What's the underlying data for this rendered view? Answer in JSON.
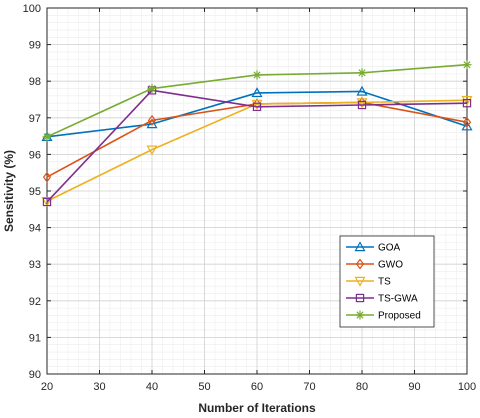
{
  "chart_data": {
    "type": "line",
    "xlabel": "Number of Iterations",
    "ylabel": "Sensitivity (%)",
    "xlim": [
      20,
      100
    ],
    "ylim": [
      90,
      100
    ],
    "xticks": [
      20,
      30,
      40,
      50,
      60,
      70,
      80,
      90,
      100
    ],
    "yticks": [
      90,
      91,
      92,
      93,
      94,
      95,
      96,
      97,
      98,
      99,
      100
    ],
    "grid": true,
    "minor_grid": true,
    "legend_position": "bottom-right",
    "x": [
      20,
      40,
      60,
      80,
      100
    ],
    "series": [
      {
        "name": "GOA",
        "color": "#0072BD",
        "marker": "triangle-up",
        "values": [
          96.48,
          96.83,
          97.68,
          97.72,
          96.77
        ]
      },
      {
        "name": "GWO",
        "color": "#D95319",
        "marker": "diamond",
        "values": [
          95.38,
          96.93,
          97.38,
          97.42,
          96.88
        ]
      },
      {
        "name": "TS",
        "color": "#EDB120",
        "marker": "triangle-down",
        "values": [
          94.72,
          96.13,
          97.38,
          97.42,
          97.48
        ]
      },
      {
        "name": "TS-GWA",
        "color": "#7E2F8E",
        "marker": "square",
        "values": [
          94.7,
          97.75,
          97.3,
          97.35,
          97.4
        ]
      },
      {
        "name": "Proposed",
        "color": "#77AC30",
        "marker": "asterisk",
        "values": [
          96.48,
          97.8,
          98.17,
          98.23,
          98.45
        ]
      }
    ]
  }
}
